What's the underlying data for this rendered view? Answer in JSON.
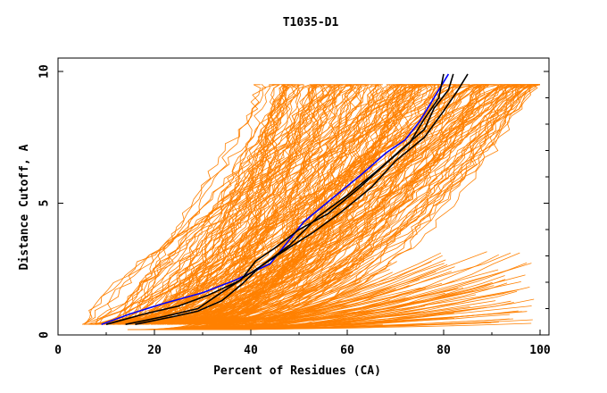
{
  "chart_data": {
    "type": "line",
    "title": "T1035-D1",
    "xlabel": "Percent of Residues (CA)",
    "ylabel": "Distance Cutoff, A",
    "xlim": [
      0,
      100
    ],
    "ylim": [
      0,
      10
    ],
    "x_ticks": [
      "0",
      "20",
      "40",
      "60",
      "80",
      "100"
    ],
    "y_ticks": [
      "0",
      "5",
      "10"
    ],
    "grid": false,
    "legend": "none",
    "colors": {
      "background_models": "#ff8000",
      "highlight_black": "#000000",
      "highlight_blue": "#0000ff"
    },
    "series": [
      {
        "color": "#0000ff",
        "x": [
          9,
          15,
          22,
          30,
          37,
          44,
          51,
          57,
          63,
          68,
          72,
          75,
          77,
          79,
          81
        ],
        "y": [
          0.4,
          0.8,
          1.2,
          1.6,
          2.1,
          2.7,
          4.3,
          5.2,
          6.1,
          6.9,
          7.4,
          8.1,
          8.7,
          9.3,
          9.9
        ]
      },
      {
        "color": "#000000",
        "x": [
          10,
          18,
          25,
          31,
          37,
          42,
          48,
          54,
          60,
          66,
          71,
          76,
          78,
          81,
          82
        ],
        "y": [
          0.4,
          0.8,
          1.1,
          1.5,
          2.0,
          2.6,
          3.4,
          4.5,
          5.3,
          6.2,
          7.0,
          7.8,
          8.6,
          9.3,
          9.9
        ]
      },
      {
        "color": "#000000",
        "x": [
          14,
          22,
          29,
          33,
          38,
          41,
          45,
          50,
          56,
          62,
          68,
          73,
          76,
          79,
          80
        ],
        "y": [
          0.4,
          0.7,
          1.0,
          1.5,
          2.1,
          2.8,
          3.3,
          4.0,
          4.6,
          5.5,
          6.5,
          7.3,
          8.2,
          9.0,
          9.9
        ]
      },
      {
        "color": "#000000",
        "x": [
          16,
          24,
          29,
          34,
          38,
          42,
          47,
          53,
          59,
          65,
          70,
          76,
          80,
          83,
          85
        ],
        "y": [
          0.4,
          0.7,
          0.9,
          1.3,
          1.9,
          2.6,
          3.2,
          3.9,
          4.7,
          5.6,
          6.6,
          7.5,
          8.5,
          9.3,
          9.9
        ]
      }
    ]
  }
}
